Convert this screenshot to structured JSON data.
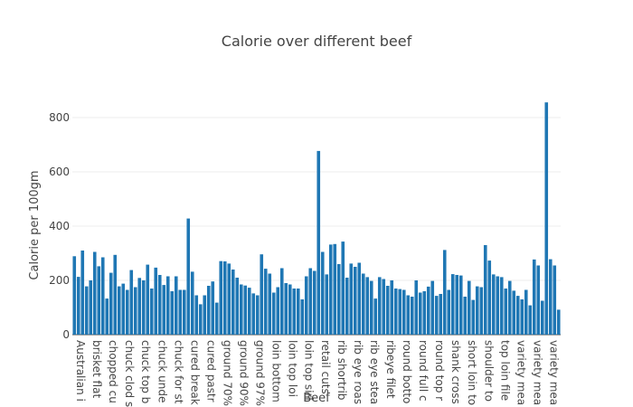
{
  "colors": {
    "bar": "#1f77b4",
    "grid": "#eeeeee",
    "text": "#444444",
    "title": "#444444"
  },
  "chart_data": {
    "type": "bar",
    "title": "Calorie over different beef",
    "xlabel": "Beef",
    "ylabel": "Calorie per 100gm",
    "ylim": [
      0,
      900
    ],
    "yticks": [
      0,
      200,
      400,
      600,
      800
    ],
    "grid": true,
    "tick_labels": [
      "Australian i",
      "brisket flat",
      "chopped cu",
      "chuck clod s",
      "chuck top b",
      "chuck unde",
      "chuck for st",
      "cured break",
      "cured pastr",
      "ground 70%",
      "ground 90%",
      "ground 97%",
      "loin bottom",
      "loin top loi",
      "loin top sirl",
      "retail cuts",
      "rib shortrib",
      "rib eye roas",
      "rib eye stea",
      "ribeye filet",
      "round botto",
      "round full c",
      "round top r",
      "shank cross",
      "short loin to",
      "shoulder to",
      "top loin file",
      "variety mea",
      "variety mea",
      "variety mea"
    ],
    "values": [
      289,
      213,
      310,
      178,
      200,
      305,
      252,
      285,
      133,
      228,
      294,
      178,
      188,
      165,
      238,
      175,
      209,
      200,
      258,
      170,
      247,
      220,
      183,
      215,
      160,
      215,
      165,
      165,
      428,
      232,
      145,
      112,
      145,
      180,
      196,
      118,
      271,
      270,
      262,
      240,
      210,
      185,
      181,
      173,
      152,
      145,
      296,
      243,
      225,
      155,
      175,
      245,
      190,
      185,
      170,
      170,
      130,
      215,
      245,
      235,
      677,
      305,
      222,
      332,
      334,
      260,
      343,
      210,
      262,
      250,
      265,
      225,
      212,
      198,
      133,
      212,
      205,
      180,
      200,
      170,
      168,
      165,
      145,
      140,
      200,
      155,
      160,
      177,
      198,
      143,
      150,
      312,
      165,
      223,
      220,
      218,
      140,
      198,
      128,
      178,
      175,
      330,
      273,
      222,
      215,
      212,
      170,
      198,
      162,
      143,
      130,
      165,
      108,
      277,
      255,
      125,
      856,
      278,
      255,
      92
    ]
  }
}
